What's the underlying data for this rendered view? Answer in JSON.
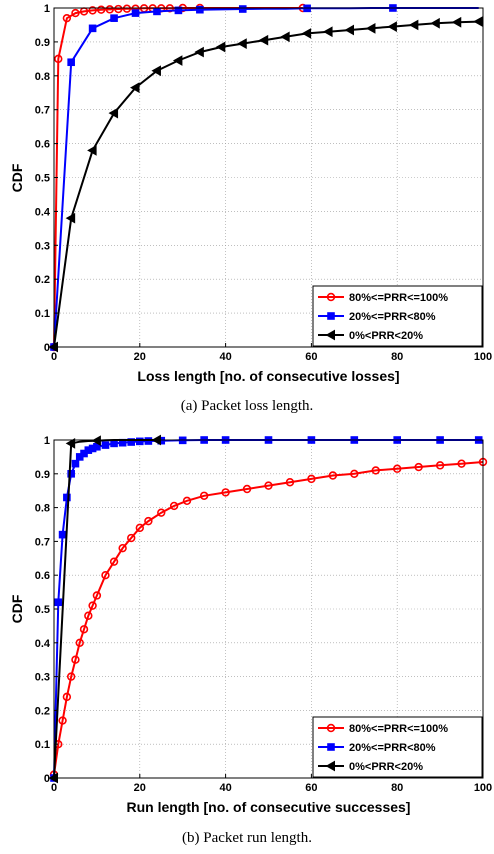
{
  "captions": [
    "(a) Packet loss length.",
    "(b) Packet run length."
  ],
  "chart_data": [
    {
      "type": "line",
      "xlabel": "Loss length [no. of consecutive losses]",
      "ylabel": "CDF",
      "xlim": [
        0,
        100
      ],
      "ylim": [
        0,
        1
      ],
      "xticks": [
        0,
        20,
        40,
        60,
        80,
        100
      ],
      "yticks": [
        0,
        0.1,
        0.2,
        0.3,
        0.4,
        0.5,
        0.6,
        0.7,
        0.8,
        0.9,
        1
      ],
      "grid": true,
      "legend_position": "bottom-right",
      "series": [
        {
          "name": "80%<=PRR<=100%",
          "color": "#ff0000",
          "marker": "circle",
          "x": [
            0,
            1,
            3,
            5,
            7,
            9,
            11,
            13,
            15,
            17,
            19,
            21,
            23,
            25,
            27,
            30,
            34,
            58
          ],
          "y": [
            0,
            0.85,
            0.97,
            0.985,
            0.99,
            0.993,
            0.995,
            0.996,
            0.997,
            0.998,
            0.998,
            0.999,
            0.999,
            0.999,
            0.999,
            1,
            1,
            1
          ]
        },
        {
          "name": "20%<=PRR<80%",
          "color": "#0000ff",
          "marker": "square",
          "x": [
            0,
            4,
            9,
            14,
            19,
            24,
            29,
            34,
            39,
            44,
            49,
            54,
            59,
            64,
            69,
            74,
            79,
            84,
            89,
            94,
            99
          ],
          "y": [
            0,
            0.84,
            0.94,
            0.97,
            0.985,
            0.99,
            0.993,
            0.995,
            0.996,
            0.997,
            0.998,
            0.998,
            0.999,
            0.999,
            0.999,
            1,
            1,
            1,
            1,
            1,
            1
          ],
          "marker_x": [
            0,
            4,
            9,
            14,
            19,
            24,
            29,
            34,
            44,
            59,
            79,
            98
          ]
        },
        {
          "name": "0%<PRR<20%",
          "color": "#000000",
          "marker": "triangle-left",
          "x": [
            0,
            4,
            9,
            14,
            19,
            24,
            29,
            34,
            39,
            44,
            49,
            54,
            59,
            64,
            69,
            74,
            79,
            84,
            89,
            94,
            99
          ],
          "y": [
            0,
            0.38,
            0.58,
            0.69,
            0.765,
            0.815,
            0.845,
            0.87,
            0.885,
            0.895,
            0.905,
            0.915,
            0.925,
            0.93,
            0.935,
            0.94,
            0.945,
            0.95,
            0.955,
            0.958,
            0.96
          ]
        }
      ]
    },
    {
      "type": "line",
      "xlabel": "Run length [no. of consecutive successes]",
      "ylabel": "CDF",
      "xlim": [
        0,
        100
      ],
      "ylim": [
        0,
        1
      ],
      "xticks": [
        0,
        20,
        40,
        60,
        80,
        100
      ],
      "yticks": [
        0,
        0.1,
        0.2,
        0.3,
        0.4,
        0.5,
        0.6,
        0.7,
        0.8,
        0.9,
        1
      ],
      "grid": true,
      "legend_position": "bottom-right",
      "series": [
        {
          "name": "80%<=PRR<=100%",
          "color": "#ff0000",
          "marker": "circle",
          "x": [
            0,
            1,
            2,
            3,
            4,
            5,
            6,
            7,
            8,
            9,
            10,
            12,
            14,
            16,
            18,
            20,
            22,
            25,
            28,
            31,
            35,
            40,
            45,
            50,
            55,
            60,
            65,
            70,
            75,
            80,
            85,
            90,
            95,
            100
          ],
          "y": [
            0.01,
            0.1,
            0.17,
            0.24,
            0.3,
            0.35,
            0.4,
            0.44,
            0.48,
            0.51,
            0.54,
            0.6,
            0.64,
            0.68,
            0.71,
            0.74,
            0.76,
            0.785,
            0.805,
            0.82,
            0.835,
            0.845,
            0.855,
            0.865,
            0.875,
            0.885,
            0.895,
            0.9,
            0.91,
            0.915,
            0.92,
            0.925,
            0.93,
            0.935
          ]
        },
        {
          "name": "20%<=PRR<80%",
          "color": "#0000ff",
          "marker": "square",
          "x": [
            0,
            1,
            2,
            3,
            4,
            5,
            6,
            7,
            8,
            9,
            10,
            12,
            14,
            16,
            18,
            20,
            22,
            25,
            30,
            35,
            40,
            50,
            60,
            70,
            80,
            90,
            99
          ],
          "y": [
            0,
            0.52,
            0.72,
            0.83,
            0.9,
            0.93,
            0.95,
            0.96,
            0.97,
            0.975,
            0.98,
            0.985,
            0.99,
            0.992,
            0.994,
            0.996,
            0.997,
            0.998,
            0.999,
            1,
            1,
            1,
            1,
            1,
            1,
            1,
            1
          ]
        },
        {
          "name": "0%<PRR<20%",
          "color": "#000000",
          "marker": "triangle-left",
          "x": [
            0,
            4,
            6,
            8,
            10,
            12,
            14,
            16,
            18,
            20,
            22,
            24
          ],
          "y": [
            0,
            0.99,
            0.995,
            0.997,
            0.998,
            0.999,
            1,
            1,
            1,
            1,
            1,
            1
          ],
          "marker_x": [
            0,
            4,
            10,
            24
          ]
        }
      ]
    }
  ]
}
